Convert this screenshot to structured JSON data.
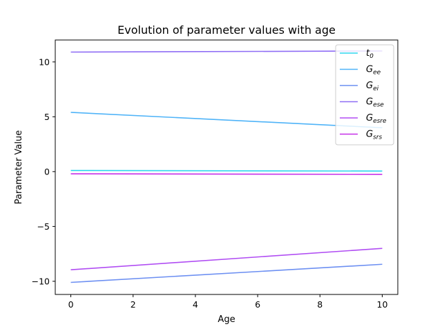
{
  "chart_data": {
    "type": "line",
    "title": "Evolution of parameter values with age",
    "xlabel": "Age",
    "ylabel": "Parameter Value",
    "xlim": [
      -0.5,
      10.5
    ],
    "ylim": [
      -11.2,
      12.0
    ],
    "xticks": [
      0,
      2,
      4,
      6,
      8,
      10
    ],
    "xtick_labels": [
      "0",
      "2",
      "4",
      "6",
      "8",
      "10"
    ],
    "yticks": [
      -10,
      -5,
      0,
      5,
      10
    ],
    "ytick_labels": [
      "−10",
      "−5",
      "0",
      "5",
      "10"
    ],
    "grid": false,
    "legend_position": "top-right",
    "x": [
      0,
      10
    ],
    "series": [
      {
        "name": "t",
        "sub": "0",
        "color": "#2bd6ee",
        "values": [
          0.1,
          0.05
        ]
      },
      {
        "name": "G",
        "sub": "ee",
        "color": "#4eb3f8",
        "values": [
          5.4,
          4.0
        ]
      },
      {
        "name": "G",
        "sub": "ei",
        "color": "#6c8ff2",
        "values": [
          -10.1,
          -8.45
        ]
      },
      {
        "name": "G",
        "sub": "ese",
        "color": "#8e6cf5",
        "values": [
          10.9,
          11.0
        ]
      },
      {
        "name": "G",
        "sub": "esre",
        "color": "#b04cf3",
        "values": [
          -8.95,
          -7.0
        ]
      },
      {
        "name": "G",
        "sub": "srs",
        "color": "#c62fe8",
        "values": [
          -0.2,
          -0.25
        ]
      }
    ]
  }
}
